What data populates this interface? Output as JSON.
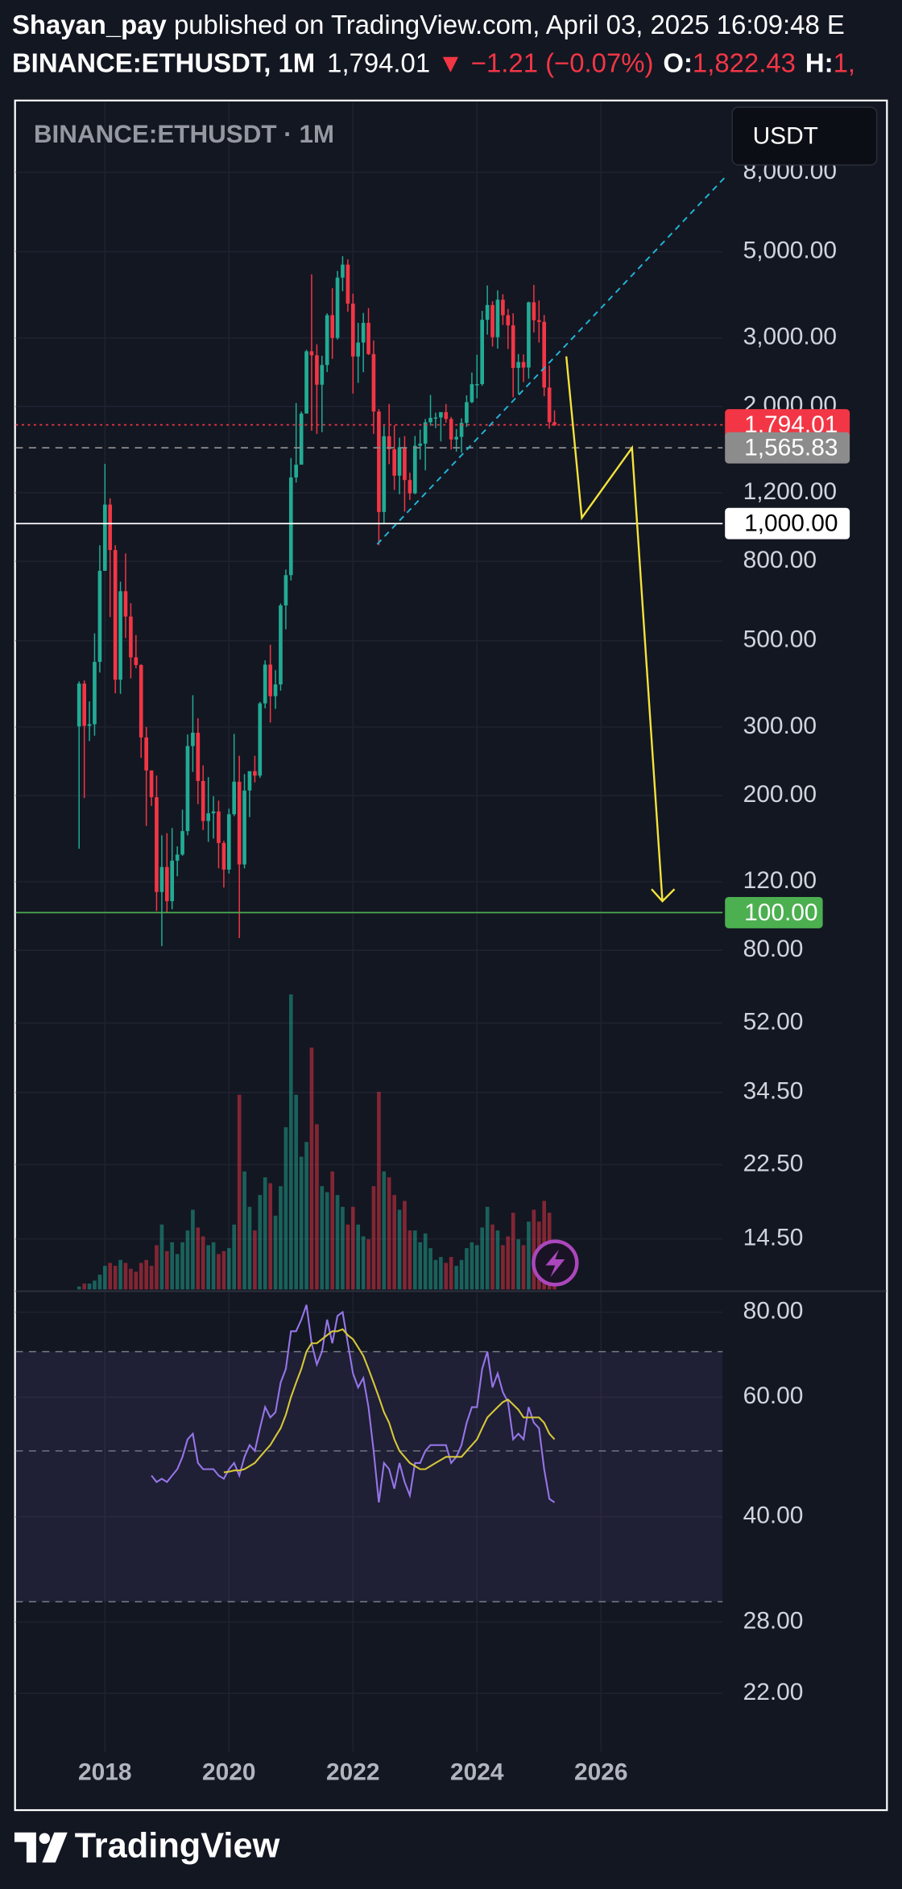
{
  "header": {
    "author": "Shayan_pay",
    "published": " published on TradingView.com, April 03, 2025 16:09:48 E",
    "symbol": "BINANCE:ETHUSDT, 1M",
    "price": "1,794.01",
    "change": "▼ −1.21 (−0.07%)",
    "open_label": "O:",
    "open_value": "1,822.43",
    "high_label": "H:",
    "high_value": "1,"
  },
  "footer": {
    "brand": "TradingView"
  },
  "chart_data": {
    "type": "candlestick",
    "title": "BINANCE:ETHUSDT · 1M",
    "currency": "USDT",
    "up_color": "#22ab94",
    "down_color": "#f23645",
    "log_scale": true,
    "grid": true,
    "xlim": [
      2016.56,
      2027.96
    ],
    "xticks": [
      2018,
      2020,
      2022,
      2024,
      2026
    ],
    "ylim": [
      10.75,
      12100
    ],
    "yticks": [
      {
        "value": 8000,
        "label": "8,000.00"
      },
      {
        "value": 5000,
        "label": "5,000.00"
      },
      {
        "value": 3000,
        "label": "3,000.00"
      },
      {
        "value": 2000,
        "label": "2,000.00"
      },
      {
        "value": 1200,
        "label": "1,200.00"
      },
      {
        "value": 800,
        "label": "800.00"
      },
      {
        "value": 500,
        "label": "500.00"
      },
      {
        "value": 300,
        "label": "300.00"
      },
      {
        "value": 200,
        "label": "200.00"
      },
      {
        "value": 120,
        "label": "120.00"
      },
      {
        "value": 80,
        "label": "80.00"
      },
      {
        "value": 52,
        "label": "52.00"
      },
      {
        "value": 34.5,
        "label": "34.50"
      },
      {
        "value": 22.5,
        "label": "22.50"
      },
      {
        "value": 14.5,
        "label": "14.50"
      }
    ],
    "x": [
      2017.583,
      2017.667,
      2017.75,
      2017.833,
      2017.917,
      2018,
      2018.083,
      2018.167,
      2018.25,
      2018.333,
      2018.417,
      2018.5,
      2018.583,
      2018.667,
      2018.75,
      2018.833,
      2018.917,
      2019,
      2019.083,
      2019.167,
      2019.25,
      2019.333,
      2019.417,
      2019.5,
      2019.583,
      2019.667,
      2019.75,
      2019.833,
      2019.917,
      2020,
      2020.083,
      2020.167,
      2020.25,
      2020.333,
      2020.417,
      2020.5,
      2020.583,
      2020.667,
      2020.75,
      2020.833,
      2020.917,
      2021,
      2021.083,
      2021.167,
      2021.25,
      2021.333,
      2021.417,
      2021.5,
      2021.583,
      2021.667,
      2021.75,
      2021.833,
      2021.917,
      2022,
      2022.083,
      2022.167,
      2022.25,
      2022.333,
      2022.417,
      2022.5,
      2022.583,
      2022.667,
      2022.75,
      2022.833,
      2022.917,
      2023,
      2023.083,
      2023.167,
      2023.25,
      2023.333,
      2023.417,
      2023.5,
      2023.583,
      2023.667,
      2023.75,
      2023.833,
      2023.917,
      2024,
      2024.083,
      2024.167,
      2024.25,
      2024.333,
      2024.417,
      2024.5,
      2024.583,
      2024.667,
      2024.75,
      2024.833,
      2024.917,
      2025,
      2025.083,
      2025.167,
      2025.25
    ],
    "open": [
      301,
      388,
      302,
      305,
      441,
      756,
      1119,
      855,
      397,
      670,
      577,
      453,
      433,
      282,
      232,
      198,
      113,
      131,
      107,
      136,
      141,
      162,
      268,
      290,
      218,
      172,
      180,
      182,
      151,
      129,
      179,
      217,
      133,
      206,
      231,
      225,
      345,
      434,
      360,
      386,
      616,
      737,
      1314,
      1417,
      1918,
      2772,
      2707,
      2275,
      2556,
      3433,
      3000,
      4288,
      4631,
      3676,
      2688,
      2920,
      3281,
      2727,
      1941,
      1071,
      1677,
      1553,
      1328,
      1572,
      1294,
      1196,
      1585,
      1605,
      1821,
      1870,
      1874,
      1934,
      1857,
      1645,
      1671,
      1815,
      2052,
      2282,
      2283,
      3340,
      3646,
      3014,
      3762,
      3433,
      3232,
      2513,
      2602,
      2518,
      3705,
      3332,
      3300,
      2237,
      1822.43
    ],
    "high": [
      393,
      395,
      349,
      522,
      880,
      1424,
      1161,
      880,
      709,
      838,
      624,
      517,
      435,
      300,
      232,
      225,
      158,
      160,
      165,
      148,
      184,
      287,
      362,
      316,
      239,
      223,
      199,
      194,
      153,
      185,
      288,
      253,
      227,
      227,
      253,
      348,
      445,
      488,
      420,
      623,
      762,
      1475,
      2041,
      1942,
      2798,
      4372,
      2890,
      2700,
      3470,
      4027,
      4460,
      4868,
      4778,
      3900,
      3282,
      3479,
      3580,
      2955,
      1970,
      1783,
      2030,
      1790,
      1663,
      1678,
      1352,
      1680,
      1743,
      1857,
      2141,
      1928,
      1930,
      2029,
      1880,
      1750,
      1865,
      2136,
      2445,
      2716,
      3523,
      4093,
      3730,
      3977,
      3887,
      3563,
      3472,
      2728,
      2722,
      3720,
      4107,
      3744,
      3437,
      2550,
      1954
    ],
    "low": [
      146,
      197,
      276,
      285,
      414,
      758,
      575,
      366,
      365,
      508,
      400,
      425,
      250,
      167,
      188,
      101,
      82,
      100,
      102,
      124,
      140,
      158,
      230,
      190,
      163,
      152,
      155,
      130,
      116,
      126,
      177,
      86,
      130,
      176,
      216,
      222,
      335,
      308,
      334,
      372,
      535,
      714,
      1275,
      1430,
      1931,
      1732,
      1700,
      1718,
      2451,
      2651,
      2971,
      3956,
      3503,
      2159,
      2300,
      2450,
      2712,
      1700,
      880,
      1000,
      1422,
      1220,
      1190,
      1073,
      1150,
      1190,
      1461,
      1370,
      1785,
      1760,
      1626,
      1816,
      1550,
      1531,
      1521,
      1772,
      2040,
      2100,
      2260,
      3060,
      2852,
      2817,
      3240,
      2810,
      2111,
      2150,
      2310,
      2357,
      3100,
      2920,
      2125,
      1754,
      1780
    ],
    "close": [
      388,
      302,
      305,
      441,
      756,
      1119,
      855,
      397,
      670,
      577,
      453,
      433,
      282,
      232,
      198,
      113,
      131,
      107,
      136,
      141,
      162,
      268,
      290,
      218,
      172,
      180,
      182,
      151,
      129,
      179,
      217,
      133,
      206,
      231,
      225,
      345,
      434,
      360,
      386,
      616,
      737,
      1314,
      1417,
      1918,
      2772,
      2707,
      2275,
      2556,
      3433,
      3000,
      4288,
      4631,
      3676,
      2688,
      2920,
      3281,
      2727,
      1941,
      1071,
      1677,
      1553,
      1328,
      1572,
      1294,
      1196,
      1585,
      1605,
      1821,
      1870,
      1874,
      1934,
      1857,
      1645,
      1671,
      1815,
      2052,
      2282,
      2283,
      3340,
      3646,
      3014,
      3762,
      3433,
      3232,
      2513,
      2602,
      2518,
      3705,
      3332,
      3300,
      2237,
      1822,
      1794.01
    ],
    "volume_lim": [
      0,
      100
    ],
    "volume": [
      1,
      2,
      2,
      3,
      5,
      8,
      9,
      8,
      10,
      9,
      7,
      6,
      9,
      10,
      8,
      15,
      22,
      13,
      16,
      12,
      16,
      20,
      27,
      21,
      18,
      15,
      16,
      12,
      13,
      14,
      22,
      66,
      40,
      28,
      20,
      32,
      38,
      36,
      25,
      35,
      55,
      100,
      66,
      45,
      50,
      82,
      56,
      35,
      33,
      40,
      32,
      28,
      22,
      28,
      22,
      18,
      17,
      35,
      67,
      40,
      38,
      32,
      27,
      30,
      20,
      20,
      16,
      19,
      14,
      10,
      11,
      9,
      11,
      8,
      10,
      14,
      16,
      15,
      21,
      28,
      22,
      20,
      15,
      18,
      26,
      17,
      15,
      23,
      27,
      23,
      30,
      26,
      8
    ],
    "hlines": [
      {
        "value": 1794.01,
        "label": "1,794.01",
        "color": "#f23645",
        "text_color": "#ffffff",
        "style": "dotted"
      },
      {
        "value": 1565.83,
        "label": "1,565.83",
        "color": "#8c8c8c",
        "text_color": "#ffffff",
        "style": "dashed"
      },
      {
        "value": 1000,
        "label": "1,000.00",
        "color": "#ffffff",
        "text_color": "#000000",
        "style": "solid"
      },
      {
        "value": 100,
        "label": "100.00",
        "color": "#4caf50",
        "text_color": "#ffffff",
        "style": "solid"
      }
    ],
    "trendline": {
      "color": "#22b5d8",
      "x": [
        2022.39,
        2028.02
      ],
      "y": [
        885,
        7830
      ]
    },
    "projection": {
      "color": "#f5e33b",
      "x": [
        2025.44,
        2025.69,
        2026.5,
        2026.99
      ],
      "y": [
        2690,
        1035,
        1566,
        107
      ]
    },
    "y2_log_scale": true,
    "y2lim": [
      18.8,
      85.7
    ],
    "y2ticks": [
      {
        "value": 80,
        "label": "80.00"
      },
      {
        "value": 60,
        "label": "60.00"
      },
      {
        "value": 40,
        "label": "40.00"
      },
      {
        "value": 28,
        "label": "28.00"
      },
      {
        "value": 22,
        "label": "22.00"
      }
    ],
    "y2_bands": [
      70,
      50,
      30
    ],
    "series": [
      {
        "color": "#9575e8",
        "axis": "y2",
        "values": [
          null,
          null,
          null,
          null,
          null,
          null,
          null,
          null,
          null,
          null,
          null,
          null,
          null,
          null,
          46,
          45,
          45.5,
          45,
          46,
          47,
          49,
          52,
          53,
          48,
          47,
          47,
          47,
          46,
          45.5,
          47,
          48,
          46,
          49,
          51,
          50,
          54,
          58,
          56,
          57,
          63,
          66,
          75,
          75,
          78,
          82,
          72,
          67,
          70,
          78,
          72,
          79,
          80,
          72,
          65,
          62,
          64,
          58,
          50,
          42,
          48,
          47,
          44,
          48,
          45,
          43,
          48,
          48,
          50,
          51,
          51,
          51,
          51,
          48,
          49,
          51,
          55,
          58,
          58,
          66,
          70,
          62,
          65,
          61,
          59,
          52,
          53,
          52,
          58,
          55,
          54,
          47,
          42.5,
          42
        ]
      },
      {
        "color": "#d6c73a",
        "axis": "y2",
        "values": [
          null,
          null,
          null,
          null,
          null,
          null,
          null,
          null,
          null,
          null,
          null,
          null,
          null,
          null,
          null,
          null,
          null,
          null,
          null,
          null,
          null,
          null,
          null,
          null,
          null,
          null,
          null,
          null,
          46.5,
          46.6,
          46.8,
          46.8,
          47,
          47.5,
          48,
          49,
          50,
          51,
          52.5,
          54,
          56.5,
          60,
          63,
          66,
          70,
          72,
          72,
          73,
          74,
          75,
          75,
          75.5,
          74,
          73,
          71,
          69,
          66,
          63,
          60,
          57,
          55,
          52,
          50,
          49,
          48,
          47.5,
          47,
          47,
          47.5,
          48,
          48.5,
          49,
          49,
          49,
          49,
          50,
          51,
          52,
          54,
          56,
          57,
          58,
          59,
          59.5,
          58.5,
          57.5,
          56,
          56,
          56,
          56,
          55,
          53,
          52
        ]
      }
    ]
  }
}
